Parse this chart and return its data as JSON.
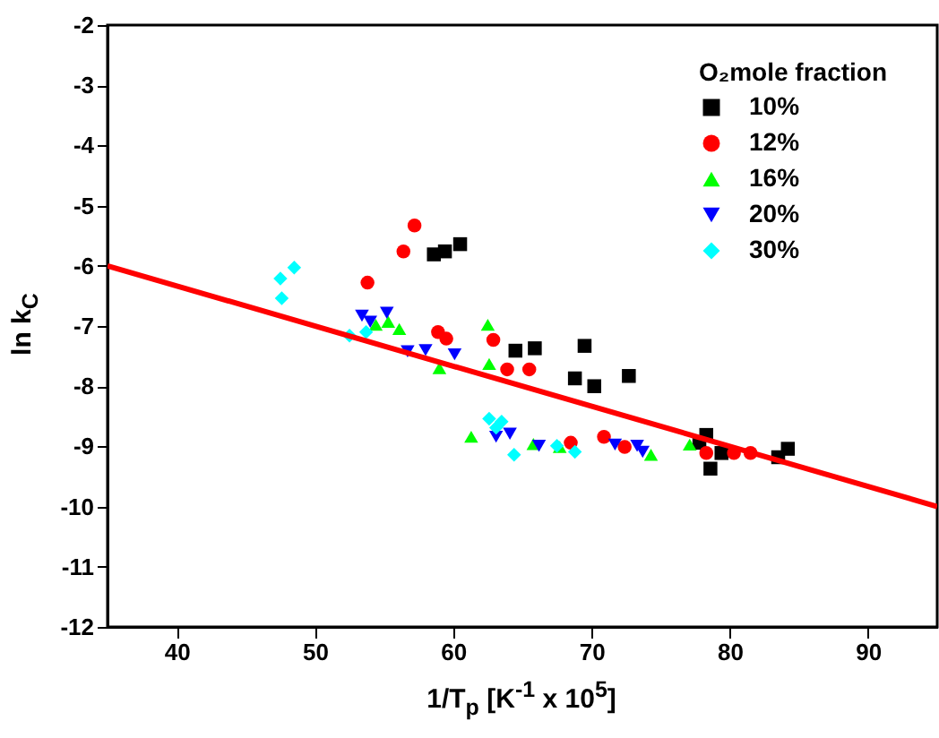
{
  "chart_data": {
    "type": "scatter",
    "xlabel": "1/T$_{p}$ [K$^{-1}$ x 10$^{5}$]",
    "ylabel": "ln k$_{C}$",
    "legend_title": "O₂mole fraction",
    "xlim": [
      35,
      95
    ],
    "xticks": [
      40,
      50,
      60,
      70,
      80,
      90
    ],
    "ylim": [
      -12,
      -2
    ],
    "yticks": [
      -12,
      -11,
      -10,
      -9,
      -8,
      -7,
      -6,
      -5,
      -4,
      -3,
      -2
    ],
    "legend": "top right",
    "series": [
      {
        "name": "10%",
        "color": "#000000",
        "marker": "square",
        "x": [
          58.6,
          59.4,
          60.5,
          64.5,
          65.9,
          69.5,
          68.8,
          70.2,
          72.7,
          78.3,
          77.8,
          78.6,
          79.4,
          83.5,
          84.2
        ],
        "values": [
          -5.81,
          -5.76,
          -5.64,
          -7.41,
          -7.37,
          -7.33,
          -7.87,
          -8.0,
          -7.83,
          -8.81,
          -8.94,
          -9.37,
          -9.11,
          -9.18,
          -9.04
        ]
      },
      {
        "name": "12%",
        "color": "#ff0000",
        "marker": "circle",
        "x": [
          57.2,
          56.4,
          53.8,
          58.9,
          59.5,
          62.9,
          63.9,
          65.5,
          68.5,
          70.9,
          72.4,
          78.3,
          80.3,
          81.5
        ],
        "values": [
          -5.33,
          -5.76,
          -6.28,
          -7.1,
          -7.21,
          -7.23,
          -7.72,
          -7.72,
          -8.94,
          -8.84,
          -9.01,
          -9.11,
          -9.11,
          -9.11
        ]
      },
      {
        "name": "16%",
        "color": "#00ff00",
        "marker": "triangle",
        "x": [
          54.4,
          55.3,
          56.1,
          62.5,
          59.0,
          62.6,
          61.3,
          65.8,
          67.7,
          74.3,
          77.1
        ],
        "values": [
          -6.98,
          -6.93,
          -7.05,
          -6.98,
          -7.7,
          -7.63,
          -8.84,
          -8.96,
          -9.01,
          -9.14,
          -8.97
        ]
      },
      {
        "name": "20%",
        "color": "#0000ff",
        "marker": "triangle-down",
        "x": [
          53.4,
          54.0,
          55.2,
          56.7,
          58.0,
          60.1,
          63.1,
          64.1,
          66.2,
          71.7,
          73.3,
          73.7
        ],
        "values": [
          -6.83,
          -6.93,
          -6.78,
          -7.42,
          -7.4,
          -7.47,
          -8.84,
          -8.79,
          -8.99,
          -8.97,
          -8.99,
          -9.09
        ]
      },
      {
        "name": "30%",
        "color": "#00ffff",
        "marker": "diamond",
        "x": [
          47.5,
          48.5,
          47.6,
          52.5,
          53.7,
          62.6,
          63.5,
          63.1,
          64.4,
          67.5,
          68.8
        ],
        "values": [
          -6.21,
          -6.03,
          -6.54,
          -7.16,
          -7.1,
          -8.54,
          -8.59,
          -8.69,
          -9.14,
          -8.99,
          -9.09
        ]
      },
      {
        "type": "line",
        "color": "#ff0000",
        "line_style": "solid",
        "x": [
          35,
          95
        ],
        "values": [
          -6,
          -10
        ]
      }
    ]
  }
}
